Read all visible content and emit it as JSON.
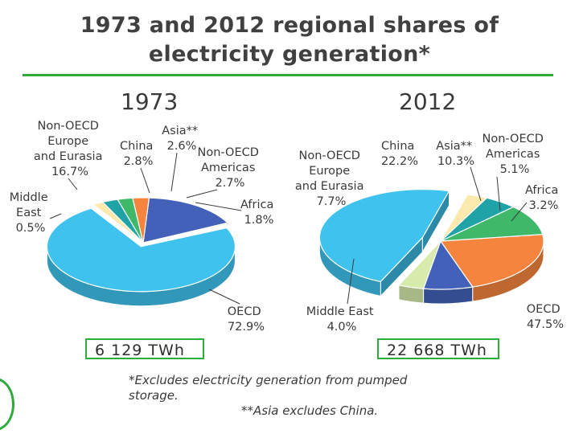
{
  "title_line1": "1973 and 2012 regional shares of",
  "title_line2": "electricity generation*",
  "accent_color": "#2faa3d",
  "chart_data": [
    {
      "type": "pie",
      "title": "1973",
      "total_label": "6 129 TWh",
      "slices": [
        {
          "name": "OECD",
          "value": 72.9,
          "label": "72.9%",
          "color": "#3fc3ee"
        },
        {
          "name": "Middle East",
          "value": 0.5,
          "label": "0.5%",
          "color": "#d7ecac"
        },
        {
          "name": "Non-OECD Europe and Eurasia",
          "value": 16.7,
          "label": "16.7%",
          "color": "#4361b9"
        },
        {
          "name": "China",
          "value": 2.8,
          "label": "2.8%",
          "color": "#f5843f"
        },
        {
          "name": "Asia**",
          "value": 2.6,
          "label": "2.6%",
          "color": "#3fb86a"
        },
        {
          "name": "Non-OECD Americas",
          "value": 2.7,
          "label": "2.7%",
          "color": "#1fa3a6"
        },
        {
          "name": "Africa",
          "value": 1.8,
          "label": "1.8%",
          "color": "#fbe9ae"
        }
      ]
    },
    {
      "type": "pie",
      "title": "2012",
      "total_label": "22 668 TWh",
      "slices": [
        {
          "name": "OECD",
          "value": 47.5,
          "label": "47.5%",
          "color": "#3fc3ee"
        },
        {
          "name": "Middle East",
          "value": 4.0,
          "label": "4.0%",
          "color": "#d7ecac"
        },
        {
          "name": "Non-OECD Europe and Eurasia",
          "value": 7.7,
          "label": "7.7%",
          "color": "#4361b9"
        },
        {
          "name": "China",
          "value": 22.2,
          "label": "22.2%",
          "color": "#f5843f"
        },
        {
          "name": "Asia**",
          "value": 10.3,
          "label": "10.3%",
          "color": "#3fb86a"
        },
        {
          "name": "Non-OECD Americas",
          "value": 5.1,
          "label": "5.1%",
          "color": "#1fa3a6"
        },
        {
          "name": "Africa",
          "value": 3.2,
          "label": "3.2%",
          "color": "#fbe9ae"
        }
      ]
    }
  ],
  "labels_1973": {
    "neu": [
      "Non-OECD",
      "Europe",
      "and Eurasia",
      "16.7%"
    ],
    "china": [
      "China",
      "2.8%"
    ],
    "asia": [
      "Asia**",
      "2.6%"
    ],
    "americas": [
      "Non-OECD",
      "Americas",
      "2.7%"
    ],
    "africa": [
      "Africa",
      "1.8%"
    ],
    "me": [
      "Middle",
      "East",
      "0.5%"
    ],
    "oecd": [
      "OECD",
      "72.9%"
    ]
  },
  "labels_2012": {
    "neu": [
      "Non-OECD",
      "Europe",
      "and Eurasia",
      "7.7%"
    ],
    "china": [
      "China",
      "22.2%"
    ],
    "asia": [
      "Asia**",
      "10.3%"
    ],
    "americas": [
      "Non-OECD",
      "Americas",
      "5.1%"
    ],
    "africa": [
      "Africa",
      "3.2%"
    ],
    "me": [
      "Middle East",
      "4.0%"
    ],
    "oecd": [
      "OECD",
      "47.5%"
    ]
  },
  "footnote_line1": "*Excludes electricity generation from pumped storage.",
  "footnote_line2": "**Asia excludes China."
}
